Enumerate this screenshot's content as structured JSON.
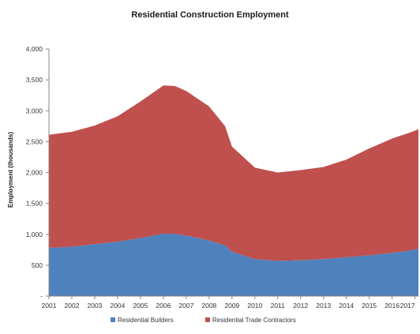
{
  "chart_data": {
    "type": "area",
    "stacked": true,
    "title": "Residential Construction Employment",
    "xlabel": "",
    "ylabel": "Employment (thousands)",
    "ylim": [
      0,
      4000
    ],
    "yticks": [
      0,
      500,
      1000,
      1500,
      2000,
      2500,
      3000,
      3500,
      4000
    ],
    "ytick_labels": [
      "-",
      "500",
      "1,000",
      "1,500",
      "2,000",
      "2,500",
      "3,000",
      "3,500",
      "4,000"
    ],
    "xlim": [
      2001,
      2017.15
    ],
    "xticks": [
      2001,
      2002,
      2003,
      2004,
      2005,
      2006,
      2007,
      2008,
      2009,
      2010,
      2011,
      2012,
      2013,
      2014,
      2015,
      2016,
      2017
    ],
    "xtick_labels": [
      "2001",
      "2002",
      "2003",
      "2004",
      "2005",
      "2006",
      "2007",
      "2008",
      "2009",
      "2010",
      "2011",
      "2012",
      "2013",
      "2014",
      "2015",
      "2016",
      "2017"
    ],
    "grid": false,
    "legend_position": "bottom",
    "colors": {
      "builders": "#4f81bd",
      "trade": "#c0504d"
    },
    "x": [
      2001,
      2002,
      2003,
      2004,
      2005,
      2006,
      2006.5,
      2007,
      2008,
      2008.7,
      2009,
      2010,
      2011,
      2012,
      2013,
      2014,
      2015,
      2016,
      2016.8,
      2017.15
    ],
    "series": [
      {
        "name": "Residential Builders",
        "values": [
          780,
          800,
          840,
          880,
          940,
          1010,
          1010,
          980,
          900,
          820,
          720,
          600,
          570,
          580,
          600,
          630,
          660,
          700,
          740,
          770
        ]
      },
      {
        "name": "Residential Trade Contractors",
        "values": [
          1830,
          1860,
          1920,
          2030,
          2210,
          2400,
          2390,
          2340,
          2170,
          1930,
          1700,
          1480,
          1430,
          1460,
          1490,
          1580,
          1730,
          1850,
          1910,
          1930
        ]
      }
    ]
  }
}
